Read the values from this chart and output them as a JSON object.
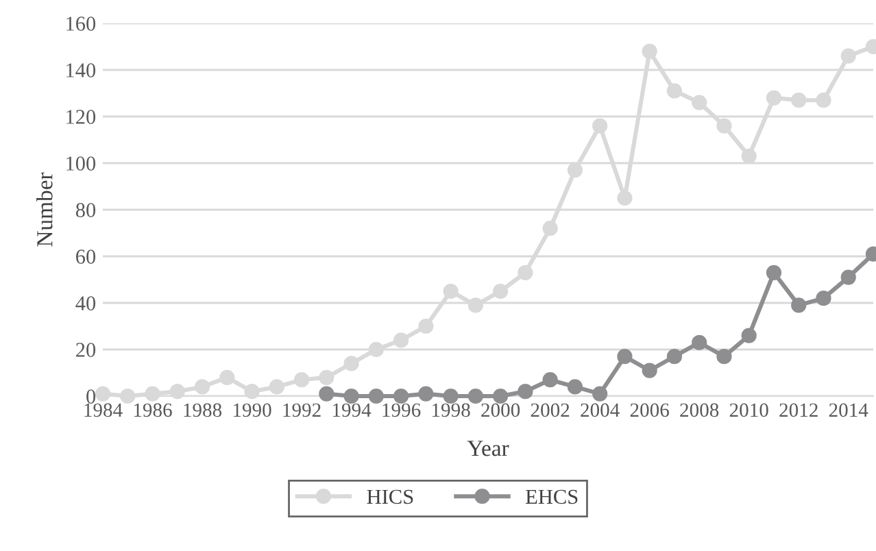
{
  "chart_data": {
    "type": "line",
    "xlabel": "Year",
    "ylabel": "Number",
    "categories": [
      "1984",
      null,
      "1986",
      null,
      "1988",
      null,
      "1990",
      null,
      "1992",
      null,
      "1994",
      null,
      "1996",
      null,
      "1998",
      null,
      "2000",
      null,
      "2002",
      null,
      "2004",
      null,
      "2006",
      null,
      "2008",
      null,
      "2010",
      null,
      "2012",
      null,
      "2014",
      null
    ],
    "series": [
      {
        "name": "HICS",
        "color": "#d9d9d9",
        "values": [
          1,
          0,
          1,
          2,
          4,
          8,
          2,
          4,
          7,
          8,
          14,
          20,
          24,
          30,
          45,
          39,
          45,
          53,
          72,
          97,
          116,
          85,
          148,
          131,
          126,
          116,
          103,
          128,
          127,
          127,
          146,
          150
        ]
      },
      {
        "name": "EHCS",
        "color": "#8e8e91",
        "values": [
          null,
          null,
          null,
          null,
          null,
          null,
          null,
          null,
          null,
          1,
          0,
          0,
          0,
          1,
          0,
          0,
          0,
          2,
          7,
          4,
          1,
          17,
          11,
          17,
          23,
          17,
          26,
          53,
          39,
          42,
          51,
          61
        ]
      }
    ],
    "ylim": [
      0,
      160
    ],
    "yticks": [
      0,
      20,
      40,
      60,
      80,
      100,
      120,
      140,
      160
    ],
    "grid": "y",
    "legend": "bottom",
    "marker": "circle",
    "line_style": "solid"
  }
}
